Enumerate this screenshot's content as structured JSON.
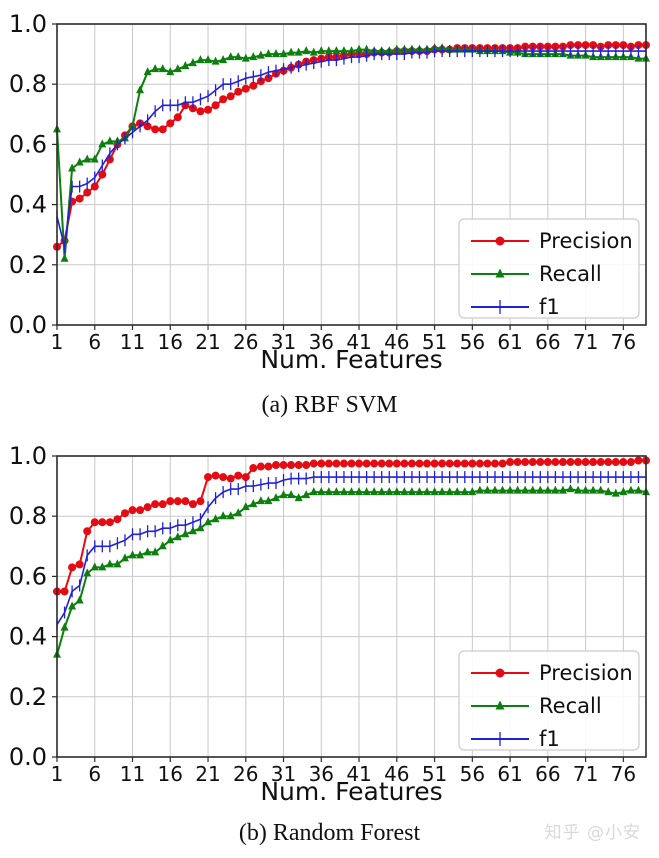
{
  "watermark": {
    "text": "知乎 @小安",
    "color": "#d9d9d9"
  },
  "style": {
    "grid_color": "#c9c9c9",
    "frame_color": "#2b2b2b",
    "tick_label_color": "#111111",
    "legend_border_color": "#cccccc"
  },
  "chart_data": [
    {
      "type": "line",
      "caption": "(a) RBF SVM",
      "xlabel": "Num. Features",
      "x_start": 1,
      "x_end": 79,
      "xticks": [
        1,
        6,
        11,
        16,
        21,
        26,
        31,
        36,
        41,
        46,
        51,
        56,
        61,
        66,
        71,
        76
      ],
      "yticks": [
        0.0,
        0.2,
        0.4,
        0.6,
        0.8,
        1.0
      ],
      "ylim": [
        0.0,
        1.0
      ],
      "grid": true,
      "legend_position": "lower right",
      "series": [
        {
          "name": "Precision",
          "color": "#e50b12",
          "marker": "circle",
          "values": [
            0.26,
            0.28,
            0.41,
            0.42,
            0.44,
            0.46,
            0.5,
            0.55,
            0.6,
            0.63,
            0.66,
            0.67,
            0.66,
            0.65,
            0.65,
            0.67,
            0.69,
            0.73,
            0.72,
            0.71,
            0.715,
            0.73,
            0.75,
            0.76,
            0.775,
            0.785,
            0.795,
            0.81,
            0.82,
            0.835,
            0.845,
            0.855,
            0.865,
            0.875,
            0.88,
            0.885,
            0.89,
            0.89,
            0.895,
            0.9,
            0.9,
            0.9,
            0.905,
            0.905,
            0.905,
            0.91,
            0.91,
            0.91,
            0.91,
            0.91,
            0.915,
            0.915,
            0.915,
            0.92,
            0.92,
            0.92,
            0.92,
            0.92,
            0.92,
            0.92,
            0.92,
            0.92,
            0.925,
            0.925,
            0.925,
            0.925,
            0.925,
            0.925,
            0.93,
            0.93,
            0.93,
            0.93,
            0.925,
            0.93,
            0.93,
            0.93,
            0.925,
            0.93,
            0.93
          ]
        },
        {
          "name": "Recall",
          "color": "#0c7f0c",
          "marker": "triangle",
          "values": [
            0.65,
            0.22,
            0.52,
            0.54,
            0.55,
            0.55,
            0.6,
            0.61,
            0.61,
            0.62,
            0.66,
            0.78,
            0.84,
            0.85,
            0.85,
            0.84,
            0.85,
            0.86,
            0.87,
            0.88,
            0.88,
            0.875,
            0.88,
            0.89,
            0.89,
            0.885,
            0.89,
            0.895,
            0.9,
            0.9,
            0.9,
            0.905,
            0.905,
            0.91,
            0.905,
            0.91,
            0.91,
            0.91,
            0.91,
            0.91,
            0.915,
            0.915,
            0.91,
            0.91,
            0.91,
            0.915,
            0.915,
            0.915,
            0.915,
            0.915,
            0.92,
            0.92,
            0.915,
            0.915,
            0.915,
            0.915,
            0.91,
            0.91,
            0.91,
            0.91,
            0.905,
            0.905,
            0.9,
            0.9,
            0.9,
            0.9,
            0.9,
            0.9,
            0.895,
            0.895,
            0.895,
            0.89,
            0.89,
            0.89,
            0.89,
            0.89,
            0.89,
            0.885,
            0.885
          ]
        },
        {
          "name": "f1",
          "color": "#2121d8",
          "marker": "vbar",
          "values": [
            0.36,
            0.26,
            0.46,
            0.46,
            0.47,
            0.49,
            0.53,
            0.57,
            0.6,
            0.62,
            0.64,
            0.66,
            0.68,
            0.71,
            0.73,
            0.73,
            0.73,
            0.74,
            0.74,
            0.75,
            0.76,
            0.78,
            0.8,
            0.8,
            0.81,
            0.82,
            0.825,
            0.83,
            0.84,
            0.845,
            0.85,
            0.855,
            0.86,
            0.865,
            0.87,
            0.875,
            0.88,
            0.88,
            0.885,
            0.89,
            0.89,
            0.895,
            0.9,
            0.9,
            0.9,
            0.9,
            0.9,
            0.905,
            0.905,
            0.905,
            0.91,
            0.91,
            0.91,
            0.91,
            0.91,
            0.91,
            0.91,
            0.91,
            0.91,
            0.91,
            0.91,
            0.91,
            0.91,
            0.91,
            0.91,
            0.91,
            0.91,
            0.91,
            0.91,
            0.91,
            0.91,
            0.91,
            0.91,
            0.91,
            0.91,
            0.91,
            0.91,
            0.91,
            0.91
          ]
        }
      ]
    },
    {
      "type": "line",
      "caption": "(b) Random Forest",
      "xlabel": "Num. Features",
      "x_start": 1,
      "x_end": 79,
      "xticks": [
        1,
        6,
        11,
        16,
        21,
        26,
        31,
        36,
        41,
        46,
        51,
        56,
        61,
        66,
        71,
        76
      ],
      "yticks": [
        0.0,
        0.2,
        0.4,
        0.6,
        0.8,
        1.0
      ],
      "ylim": [
        0.0,
        1.0
      ],
      "grid": true,
      "legend_position": "lower right",
      "series": [
        {
          "name": "Precision",
          "color": "#e50b12",
          "marker": "circle",
          "values": [
            0.55,
            0.55,
            0.63,
            0.64,
            0.75,
            0.78,
            0.78,
            0.78,
            0.79,
            0.81,
            0.82,
            0.82,
            0.83,
            0.84,
            0.84,
            0.85,
            0.85,
            0.85,
            0.84,
            0.85,
            0.93,
            0.935,
            0.93,
            0.925,
            0.935,
            0.93,
            0.96,
            0.965,
            0.965,
            0.97,
            0.97,
            0.97,
            0.97,
            0.97,
            0.975,
            0.975,
            0.975,
            0.975,
            0.975,
            0.975,
            0.975,
            0.975,
            0.975,
            0.975,
            0.975,
            0.975,
            0.975,
            0.975,
            0.975,
            0.975,
            0.975,
            0.975,
            0.975,
            0.975,
            0.975,
            0.975,
            0.975,
            0.975,
            0.975,
            0.975,
            0.98,
            0.98,
            0.98,
            0.98,
            0.98,
            0.98,
            0.98,
            0.98,
            0.98,
            0.98,
            0.98,
            0.98,
            0.98,
            0.98,
            0.98,
            0.98,
            0.98,
            0.985,
            0.985
          ]
        },
        {
          "name": "Recall",
          "color": "#0c7f0c",
          "marker": "triangle",
          "values": [
            0.34,
            0.43,
            0.5,
            0.52,
            0.61,
            0.63,
            0.63,
            0.64,
            0.64,
            0.66,
            0.67,
            0.67,
            0.68,
            0.68,
            0.7,
            0.72,
            0.73,
            0.74,
            0.75,
            0.76,
            0.78,
            0.79,
            0.8,
            0.8,
            0.81,
            0.83,
            0.84,
            0.85,
            0.85,
            0.86,
            0.87,
            0.87,
            0.86,
            0.87,
            0.88,
            0.88,
            0.88,
            0.88,
            0.88,
            0.88,
            0.88,
            0.88,
            0.88,
            0.88,
            0.88,
            0.88,
            0.88,
            0.88,
            0.88,
            0.88,
            0.88,
            0.88,
            0.88,
            0.88,
            0.88,
            0.88,
            0.885,
            0.885,
            0.885,
            0.885,
            0.885,
            0.885,
            0.885,
            0.885,
            0.885,
            0.885,
            0.885,
            0.885,
            0.89,
            0.885,
            0.885,
            0.885,
            0.885,
            0.88,
            0.875,
            0.88,
            0.885,
            0.885,
            0.88
          ]
        },
        {
          "name": "f1",
          "color": "#2121d8",
          "marker": "vbar",
          "values": [
            0.44,
            0.48,
            0.55,
            0.57,
            0.67,
            0.7,
            0.7,
            0.7,
            0.71,
            0.72,
            0.74,
            0.74,
            0.75,
            0.75,
            0.76,
            0.76,
            0.77,
            0.77,
            0.78,
            0.79,
            0.83,
            0.86,
            0.88,
            0.89,
            0.89,
            0.9,
            0.9,
            0.905,
            0.91,
            0.91,
            0.92,
            0.925,
            0.925,
            0.925,
            0.93,
            0.93,
            0.93,
            0.93,
            0.93,
            0.93,
            0.93,
            0.93,
            0.93,
            0.93,
            0.93,
            0.93,
            0.93,
            0.93,
            0.93,
            0.93,
            0.93,
            0.93,
            0.93,
            0.93,
            0.93,
            0.93,
            0.93,
            0.93,
            0.93,
            0.93,
            0.93,
            0.93,
            0.93,
            0.93,
            0.93,
            0.93,
            0.93,
            0.93,
            0.93,
            0.93,
            0.93,
            0.93,
            0.93,
            0.93,
            0.93,
            0.93,
            0.93,
            0.93,
            0.93
          ]
        }
      ]
    }
  ]
}
